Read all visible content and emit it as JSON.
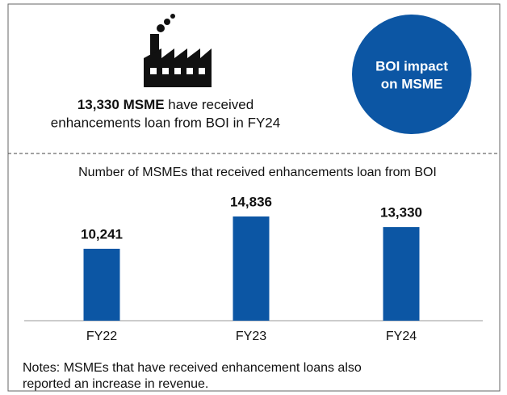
{
  "headline": {
    "bold": "13,330 MSME",
    "rest": " have received",
    "line2": "enhancements loan from BOI in FY24"
  },
  "badge": [
    "BOI impact",
    "on MSME"
  ],
  "chart_data": {
    "type": "bar",
    "title": "Number of MSMEs that received enhancements loan from BOI",
    "categories": [
      "FY22",
      "FY23",
      "FY24"
    ],
    "values": [
      10241,
      14836,
      13330
    ],
    "value_labels": [
      "10,241",
      "14,836",
      "13,330"
    ],
    "color": "#0c56a4"
  },
  "notes": [
    "Notes: MSMEs that have received enhancement loans also",
    "reported an increase in revenue."
  ]
}
